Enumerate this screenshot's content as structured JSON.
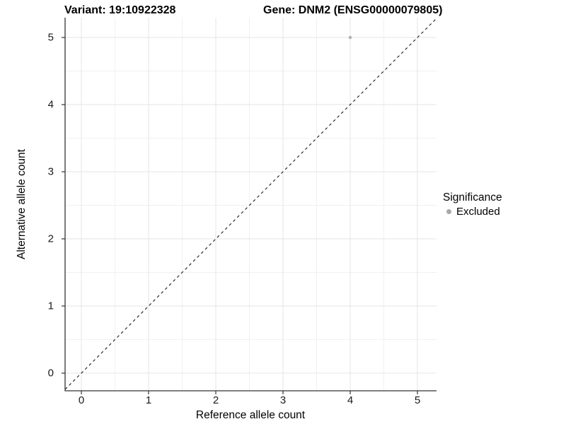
{
  "header": {
    "title_left": "Variant: 19:10922328",
    "title_right": "Gene: DNM2 (ENSG00000079805)"
  },
  "chart_data": {
    "type": "scatter",
    "title_left": "Variant: 19:10922328",
    "title_right": "Gene: DNM2 (ENSG00000079805)",
    "xlabel": "Reference allele count",
    "ylabel": "Alternative allele count",
    "x_ticks": [
      0,
      1,
      2,
      3,
      4,
      5
    ],
    "y_ticks": [
      0,
      1,
      2,
      3,
      4,
      5
    ],
    "xlim": [
      -0.242,
      5.284
    ],
    "ylim": [
      -0.263,
      5.295
    ],
    "grid": "major-and-minor",
    "minor_tick_step": 0.5,
    "points": [
      {
        "x": 4,
        "y": 5,
        "series": "Excluded"
      }
    ],
    "reference_line": {
      "type": "identity",
      "style": "dashed"
    },
    "legend": {
      "title": "Significance",
      "position": "right",
      "items": [
        {
          "label": "Excluded",
          "color": "#a9a9a9"
        }
      ]
    },
    "colors": {
      "point": "#b3b3b3",
      "major_grid": "#e4e4e4",
      "minor_grid": "#f1f1f1",
      "axis_line": "#333333",
      "tick_mark": "#333333",
      "reference_line": "#1a1a1a"
    }
  }
}
